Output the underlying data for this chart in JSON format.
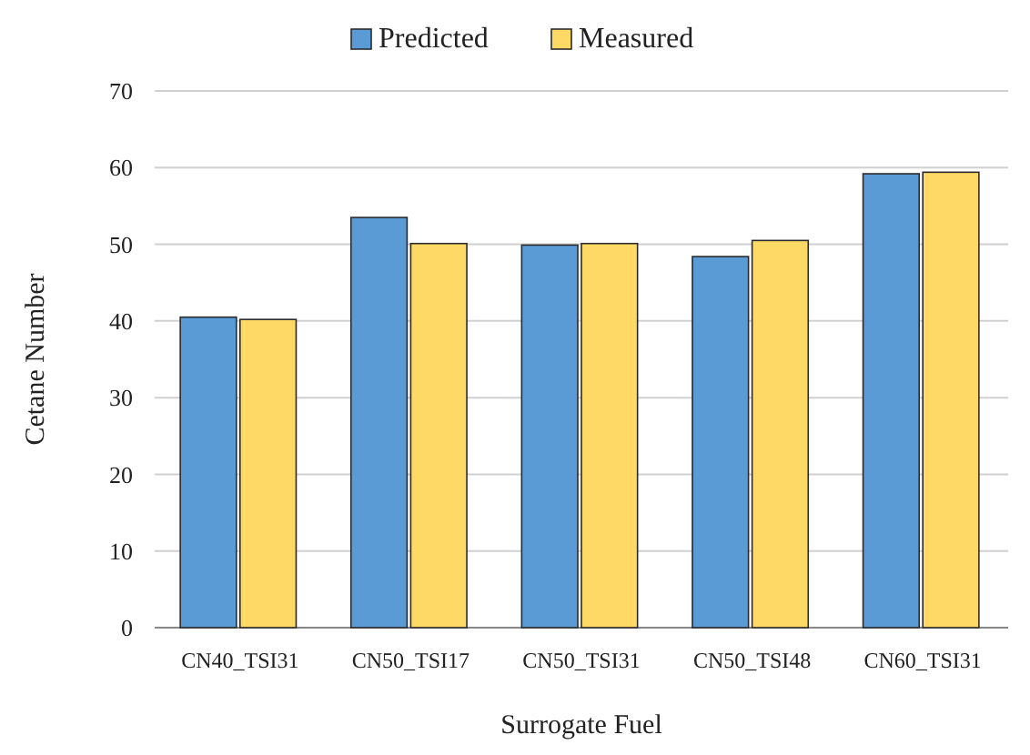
{
  "chart_data": {
    "type": "bar",
    "xlabel": "Surrogate Fuel",
    "ylabel": "Cetane Number",
    "categories": [
      "CN40_TSI31",
      "CN50_TSI17",
      "CN50_TSI31",
      "CN50_TSI48",
      "CN60_TSI31"
    ],
    "series": [
      {
        "name": "Predicted",
        "color": "#5b9bd5",
        "values": [
          40.5,
          53.5,
          49.9,
          48.4,
          59.2
        ]
      },
      {
        "name": "Measured",
        "color": "#ffd966",
        "values": [
          40.2,
          50.1,
          50.1,
          50.5,
          59.4
        ]
      }
    ],
    "ylim": [
      0,
      70
    ],
    "yticks": [
      0,
      10,
      20,
      30,
      40,
      50,
      60,
      70
    ],
    "grid": "y",
    "legend": "top"
  }
}
